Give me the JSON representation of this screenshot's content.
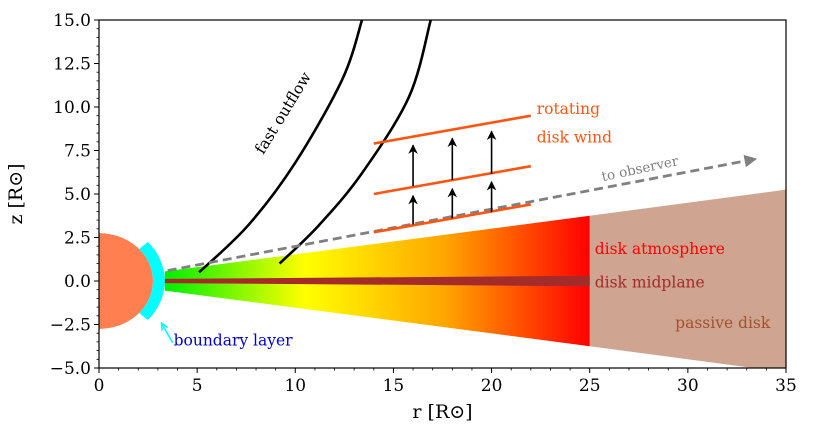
{
  "chart_data": {
    "type": "diagram",
    "xlabel": "r [R⊙]",
    "ylabel": "z [R⊙]",
    "xlim": [
      0,
      35
    ],
    "ylim": [
      -5,
      15
    ],
    "xticks": [
      0,
      5,
      10,
      15,
      20,
      25,
      30,
      35
    ],
    "xtick_labels": [
      "0",
      "5",
      "10",
      "15",
      "20",
      "25",
      "30",
      "35"
    ],
    "yticks": [
      -5,
      -2.5,
      0,
      2.5,
      5,
      7.5,
      10,
      12.5,
      15
    ],
    "ytick_labels": [
      "−5.0",
      "−2.5",
      "0.0",
      "2.5",
      "5.0",
      "7.5",
      "10.0",
      "12.5",
      "15.0"
    ],
    "star": {
      "radius": 2.75,
      "color": "#ff7f50"
    },
    "boundary_layer": {
      "r_inner": 2.75,
      "r_outer": 3.35,
      "angle_deg": 42,
      "color": "#00ffff"
    },
    "hot_disk": {
      "r_start": 3.35,
      "r_end": 25,
      "z_top_start": 0.55,
      "z_top_end": 3.75,
      "z_bot_start": -0.55,
      "z_bot_end": -3.75,
      "gradient": [
        "#00ee00",
        "#ffff00",
        "#ffa500",
        "#ff0000"
      ]
    },
    "midplane": {
      "r_start": 3.35,
      "r_end": 25,
      "half_width_start": 0.12,
      "half_width_end": 0.3,
      "color": "#a52a2a"
    },
    "passive_disk": {
      "r_start": 25,
      "r_end": 35,
      "z_top_end": 5.25,
      "z_bot_end": -5.25,
      "color": "#cfa592"
    },
    "outflow_lines": [
      {
        "points": [
          [
            5.1,
            0.5
          ],
          [
            7.6,
            3.2
          ],
          [
            10,
            6.8
          ],
          [
            12.4,
            11.6
          ],
          [
            13.4,
            15
          ]
        ]
      },
      {
        "points": [
          [
            9.2,
            1.0
          ],
          [
            11.2,
            3.2
          ],
          [
            13.4,
            6.2
          ],
          [
            15.8,
            10.6
          ],
          [
            16.9,
            15
          ]
        ]
      }
    ],
    "wind_lines": [
      {
        "r0": 14,
        "z0": 2.8,
        "r1": 22,
        "z1": 4.4
      },
      {
        "r0": 14,
        "z0": 5.0,
        "r1": 22,
        "z1": 6.6
      },
      {
        "r0": 14,
        "z0": 7.9,
        "r1": 22,
        "z1": 9.5
      }
    ],
    "wind_arrows": [
      {
        "r": 16,
        "z0": 3.25,
        "z1": 4.9
      },
      {
        "r": 16,
        "z0": 5.45,
        "z1": 7.8
      },
      {
        "r": 18,
        "z0": 3.6,
        "z1": 5.3
      },
      {
        "r": 18,
        "z0": 5.8,
        "z1": 8.2
      },
      {
        "r": 20,
        "z0": 3.95,
        "z1": 5.7
      },
      {
        "r": 20,
        "z0": 6.15,
        "z1": 8.6
      }
    ],
    "observer_line": {
      "r0": 3.5,
      "z0": 0.6,
      "r1": 33.4,
      "z1": 7.0
    },
    "labels": {
      "fast_outflow": "fast outflow",
      "rotating": "rotating",
      "disk_wind": "disk wind",
      "to_observer": "to observer",
      "disk_atmosphere": "disk atmosphere",
      "disk_midplane": "disk midplane",
      "boundary_layer": "boundary layer",
      "passive_disk": "passive disk"
    },
    "label_positions": {
      "fast_outflow": {
        "r": 9.6,
        "z": 9.5,
        "angle_deg": -58.5
      },
      "rotating": {
        "r": 22.3,
        "z": 9.6
      },
      "disk_wind": {
        "r": 22.3,
        "z": 7.95
      },
      "to_observer": {
        "r": 27.6,
        "z": 6.2,
        "angle_deg": -12
      },
      "disk_atmosphere": {
        "r": 25,
        "z": 1.55
      },
      "disk_midplane": {
        "r": 25,
        "z": -0.08
      },
      "boundary_layer": {
        "r": 3.8,
        "z": -3.7
      },
      "passive_disk": {
        "r": 34.2,
        "z": -2.7
      }
    },
    "boundary_arrow": {
      "r0": 3.75,
      "z0": -3.55,
      "r1": 3.2,
      "z1": -2.45
    },
    "colors": {
      "outflow": "#000000",
      "wind": "#ff5511",
      "arrow": "#000000",
      "observer": "#808080",
      "atmosphere_text": "#ff0000",
      "midplane_text": "#a52a2a",
      "boundary_text": "#0000cc",
      "boundary_arrow": "#00ffff",
      "passive_text": "#a0522d",
      "rotating_text": "#ff5511"
    }
  }
}
